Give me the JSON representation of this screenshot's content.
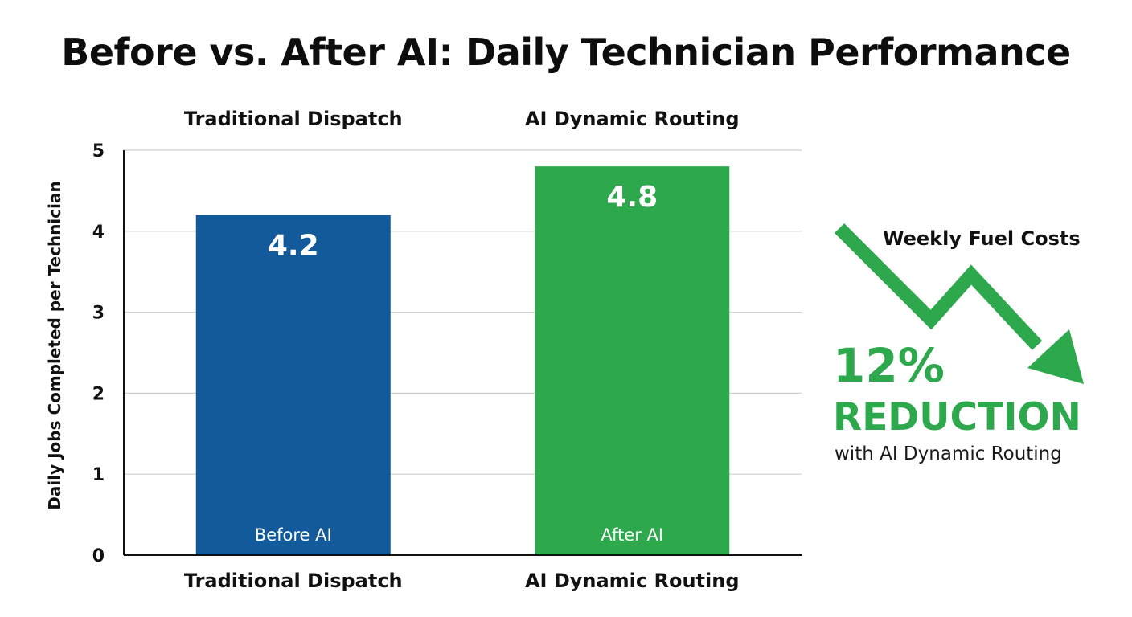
{
  "chart_data": {
    "type": "bar",
    "title": "Before vs. After AI: Daily Technician Performance",
    "ylabel": "Daily Jobs Completed per Technician",
    "ylim": [
      0,
      5
    ],
    "yticks": [
      "0",
      "1",
      "2",
      "3",
      "4",
      "5"
    ],
    "grid": true,
    "categories": [
      "Traditional Dispatch",
      "AI Dynamic Routing"
    ],
    "values": [
      4.2,
      4.8
    ],
    "value_labels": [
      "4.2",
      "4.8"
    ],
    "bar_inner_labels": [
      "Before AI",
      "After AI"
    ],
    "bar_colors": [
      "#135a9b",
      "#2ea84c"
    ]
  },
  "callout": {
    "title": "Weekly Fuel Costs",
    "percent": "12%",
    "label": "REDUCTION",
    "subtitle": "with AI Dynamic Routing",
    "accent_color": "#2ea84c",
    "icon": "trend-down-arrow-icon"
  }
}
